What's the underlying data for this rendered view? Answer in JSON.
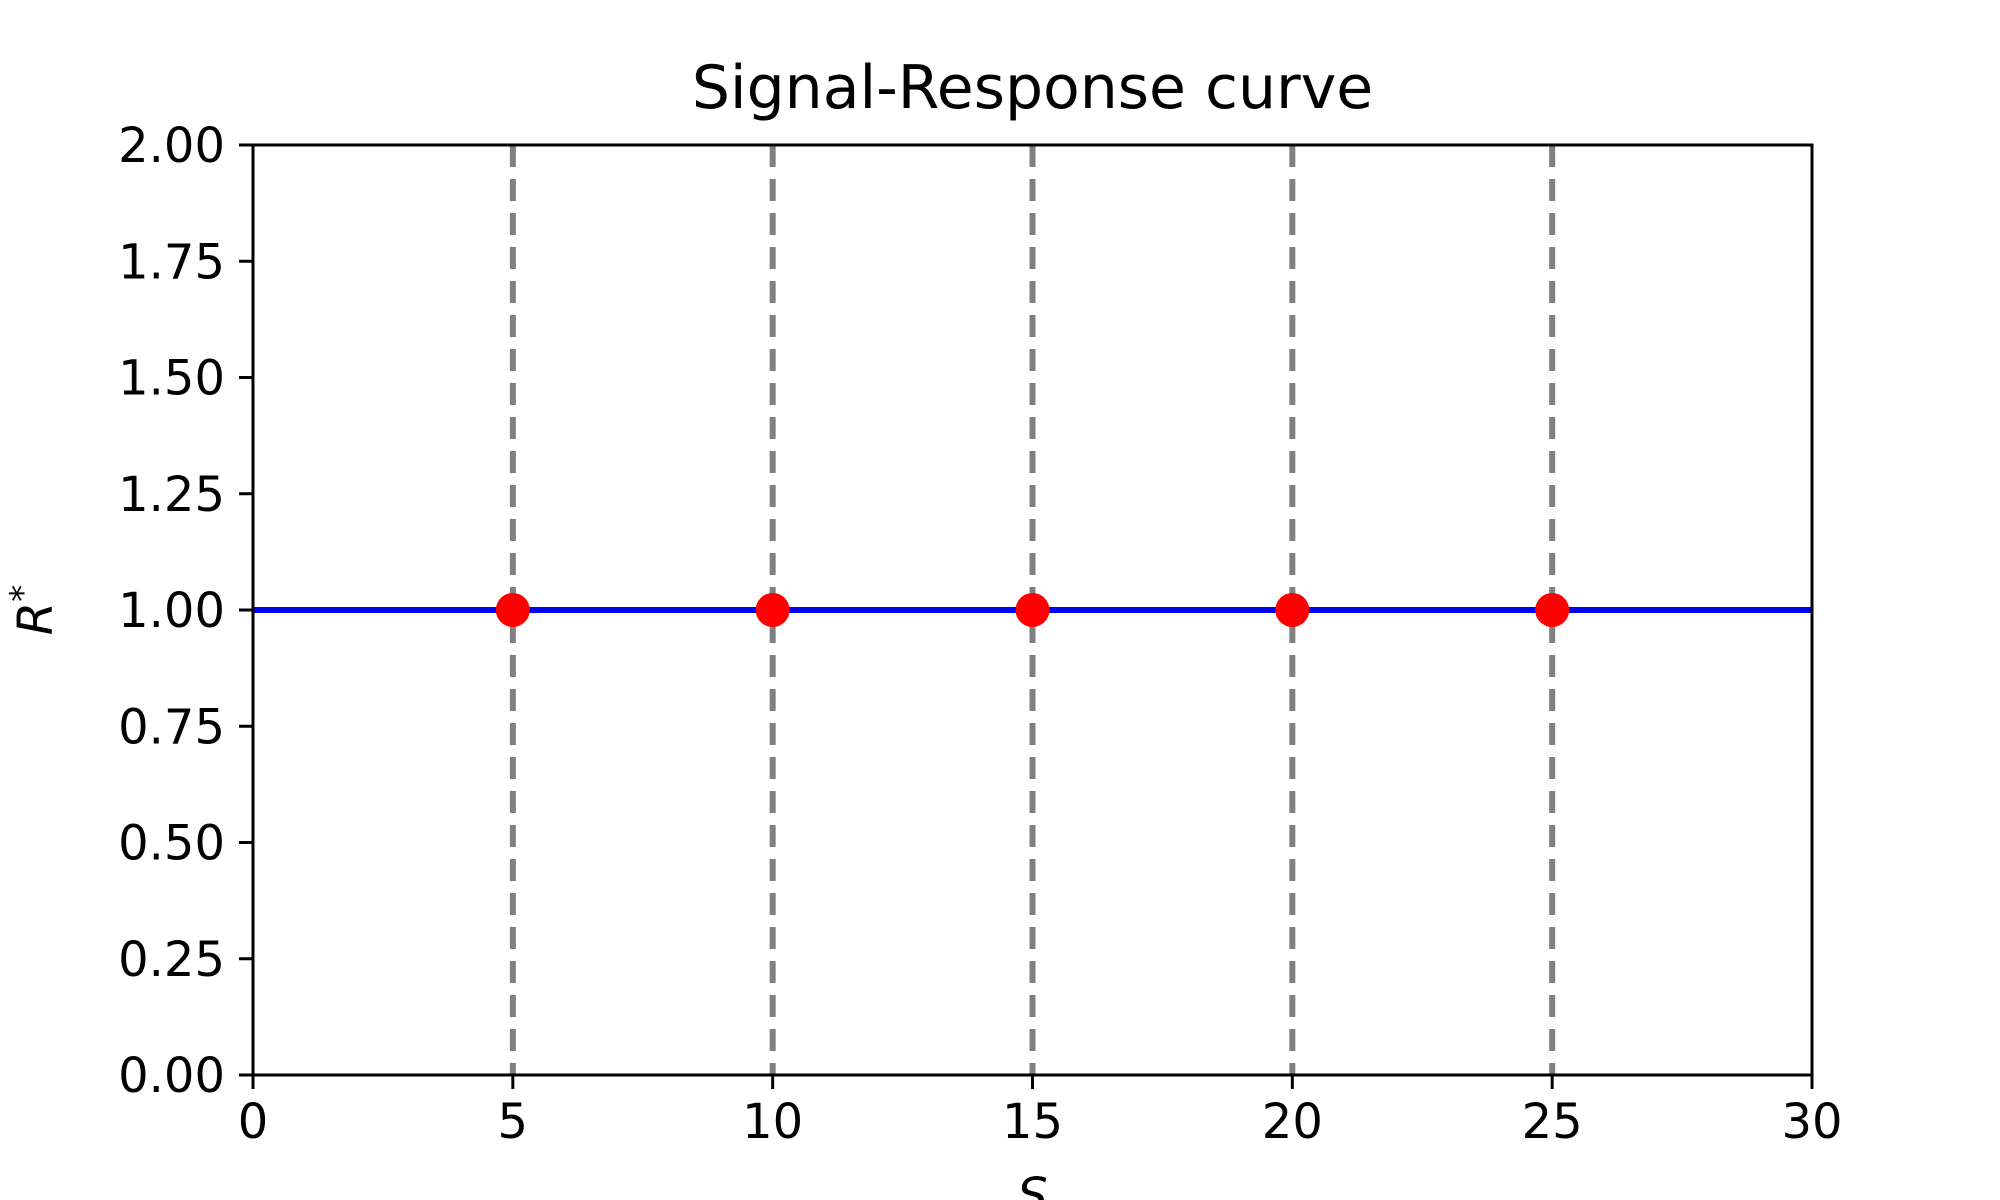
{
  "chart_data": {
    "type": "line",
    "title": "Signal-Response curve",
    "xlabel": "S",
    "ylabel": "R",
    "ylabel_superscript": "*",
    "xlim": [
      0,
      30
    ],
    "ylim": [
      0,
      2
    ],
    "x_ticks": [
      0,
      5,
      10,
      15,
      20,
      25,
      30
    ],
    "x_tick_labels": [
      "0",
      "5",
      "10",
      "15",
      "20",
      "25",
      "30"
    ],
    "y_ticks": [
      0,
      0.25,
      0.5,
      0.75,
      1.0,
      1.25,
      1.5,
      1.75,
      2.0
    ],
    "y_tick_labels": [
      "0.00",
      "0.25",
      "0.50",
      "0.75",
      "1.00",
      "1.25",
      "1.50",
      "1.75",
      "2.00"
    ],
    "grid": false,
    "legend": false,
    "series": [
      {
        "kind": "line",
        "x": [
          0,
          30
        ],
        "y": [
          1.0,
          1.0
        ],
        "color": "#0000ff"
      }
    ],
    "vertical_lines": {
      "x": [
        5,
        10,
        15,
        20,
        25
      ],
      "color": "#808080",
      "style": "dashed"
    },
    "points": {
      "x": [
        5,
        10,
        15,
        20,
        25
      ],
      "y": [
        1.0,
        1.0,
        1.0,
        1.0,
        1.0
      ],
      "color": "#ff0000"
    }
  }
}
